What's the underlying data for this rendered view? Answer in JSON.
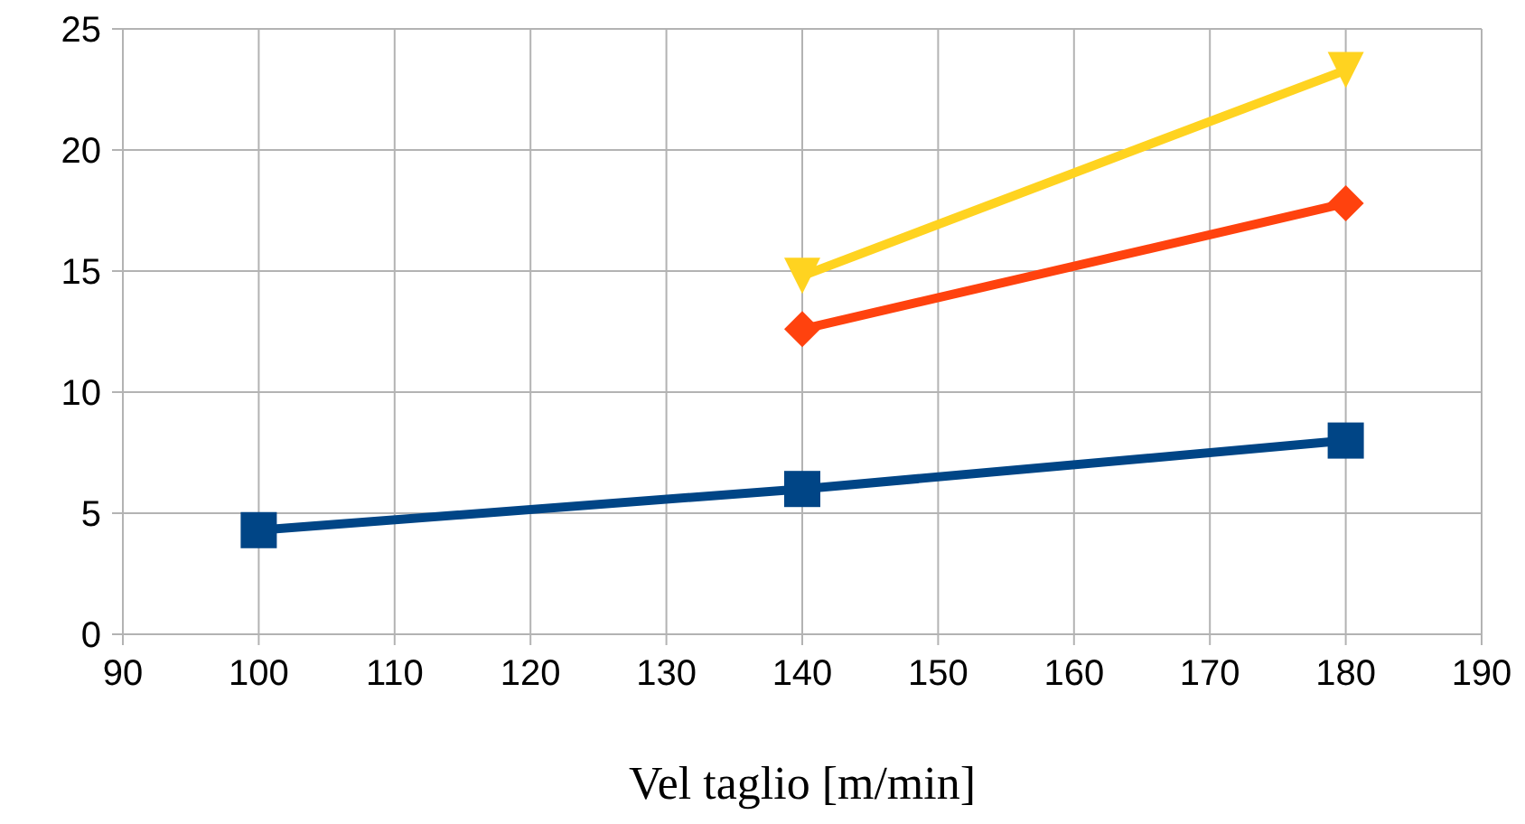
{
  "chart_data": {
    "type": "line",
    "xlabel": "Vel taglio [m/min]",
    "x": [
      100,
      140,
      180
    ],
    "series": [
      {
        "color": "#004586",
        "marker": "square",
        "values": [
          4.3,
          6.0,
          8.0
        ]
      },
      {
        "color": "#ff420e",
        "marker": "diamond",
        "values": [
          null,
          12.6,
          17.8
        ]
      },
      {
        "color": "#ffd320",
        "marker": "triangle",
        "values": [
          null,
          14.8,
          23.3
        ]
      }
    ],
    "xlim": [
      90,
      190
    ],
    "xticks": [
      90,
      100,
      110,
      120,
      130,
      140,
      150,
      160,
      170,
      180,
      190
    ],
    "ylim": [
      0,
      25
    ],
    "yticks": [
      0,
      5,
      10,
      15,
      20,
      25
    ],
    "grid": true,
    "line_style": "solid"
  }
}
